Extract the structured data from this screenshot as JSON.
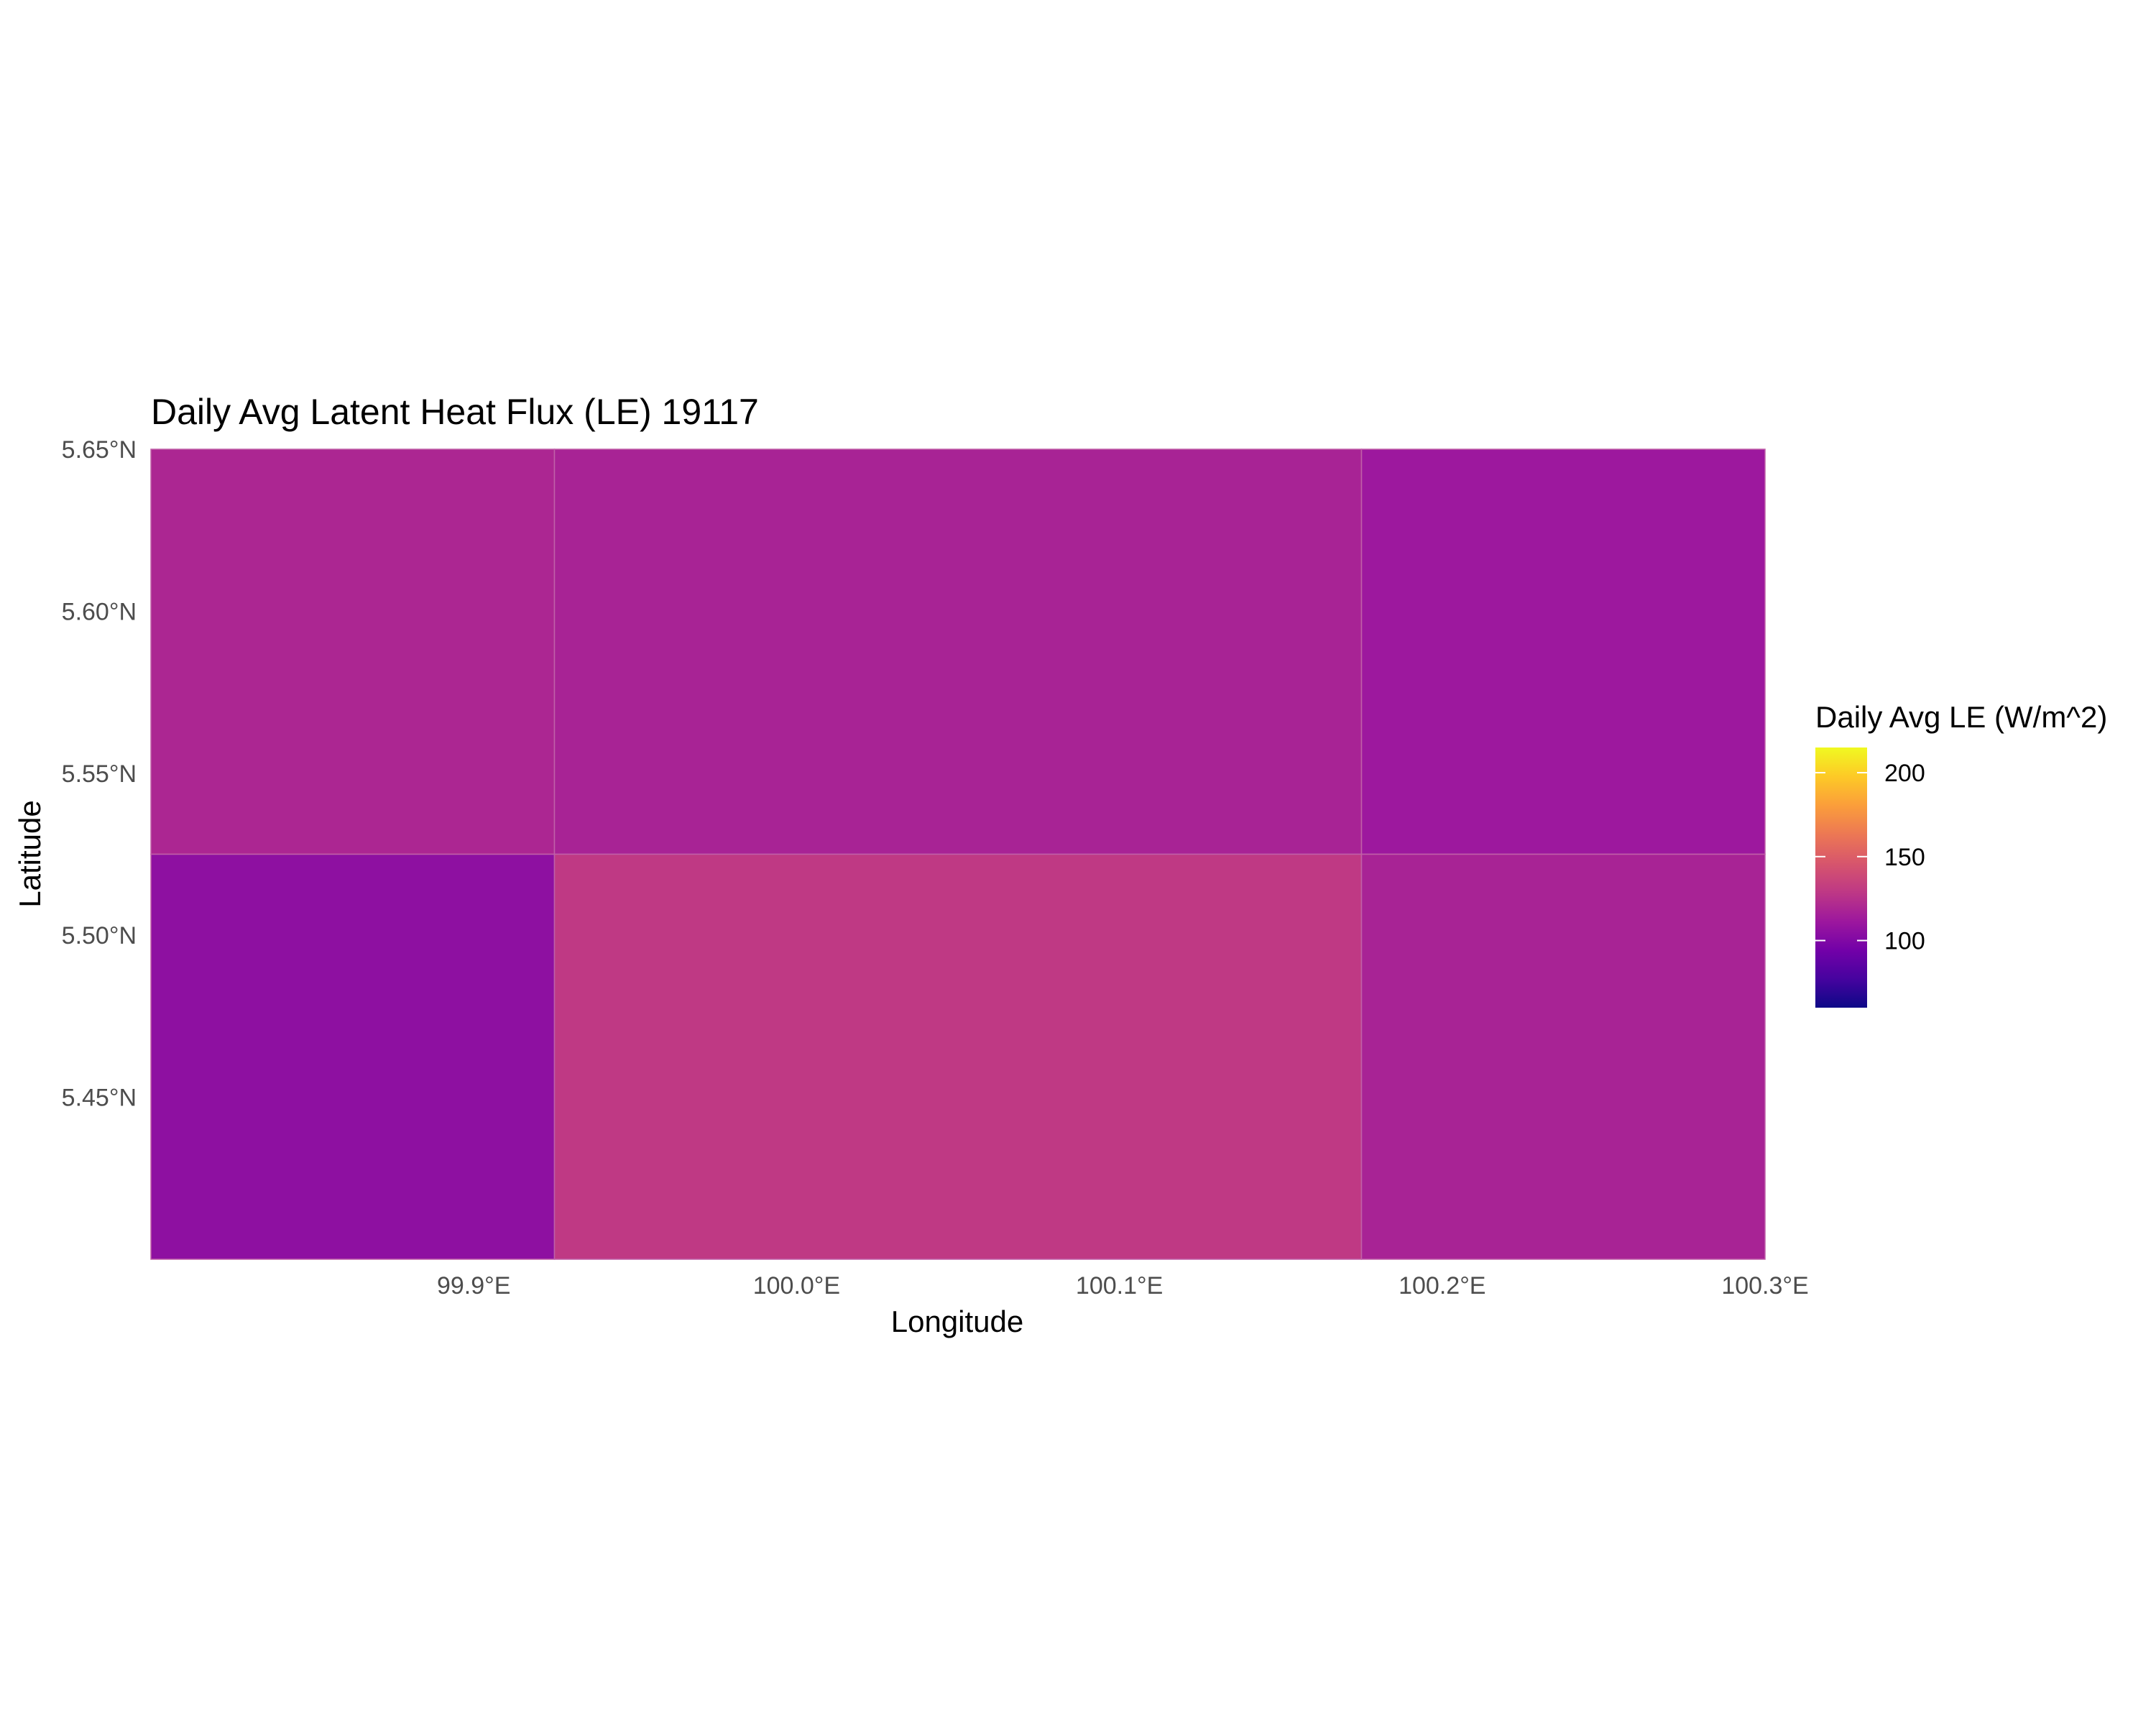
{
  "chart_data": {
    "type": "heatmap",
    "title": "Daily Avg Latent Heat Flux (LE) 19117",
    "xlabel": "Longitude",
    "ylabel": "Latitude",
    "xlim": [
      99.8,
      100.3
    ],
    "ylim": [
      5.4,
      5.65
    ],
    "x_ticks": [
      {
        "value": 99.9,
        "label": "99.9°E"
      },
      {
        "value": 100.0,
        "label": "100.0°E"
      },
      {
        "value": 100.1,
        "label": "100.1°E"
      },
      {
        "value": 100.2,
        "label": "100.2°E"
      },
      {
        "value": 100.3,
        "label": "100.3°E"
      }
    ],
    "y_ticks": [
      {
        "value": 5.45,
        "label": "5.45°N"
      },
      {
        "value": 5.5,
        "label": "5.50°N"
      },
      {
        "value": 5.55,
        "label": "5.55°N"
      },
      {
        "value": 5.6,
        "label": "5.60°N"
      },
      {
        "value": 5.65,
        "label": "5.65°N"
      }
    ],
    "cells": [
      {
        "lon": [
          99.8,
          99.925
        ],
        "lat": [
          5.525,
          5.65
        ],
        "value": 120
      },
      {
        "lon": [
          99.925,
          100.175
        ],
        "lat": [
          5.525,
          5.65
        ],
        "value": 118
      },
      {
        "lon": [
          100.175,
          100.3
        ],
        "lat": [
          5.525,
          5.65
        ],
        "value": 112
      },
      {
        "lon": [
          99.8,
          99.925
        ],
        "lat": [
          5.4,
          5.525
        ],
        "value": 106
      },
      {
        "lon": [
          99.925,
          100.175
        ],
        "lat": [
          5.4,
          5.525
        ],
        "value": 130
      },
      {
        "lon": [
          100.175,
          100.3
        ],
        "lat": [
          5.4,
          5.525
        ],
        "value": 118
      }
    ],
    "legend": {
      "title": "Daily Avg LE (W/m^2)",
      "min": 60,
      "max": 215,
      "ticks": [
        {
          "value": 100,
          "label": "100"
        },
        {
          "value": 150,
          "label": "150"
        },
        {
          "value": 200,
          "label": "200"
        }
      ],
      "colormap": "plasma",
      "position": "right"
    },
    "grid": false,
    "colors": {
      "cell_border": "#c060a8",
      "tick_text": "#4d4d4d"
    }
  }
}
